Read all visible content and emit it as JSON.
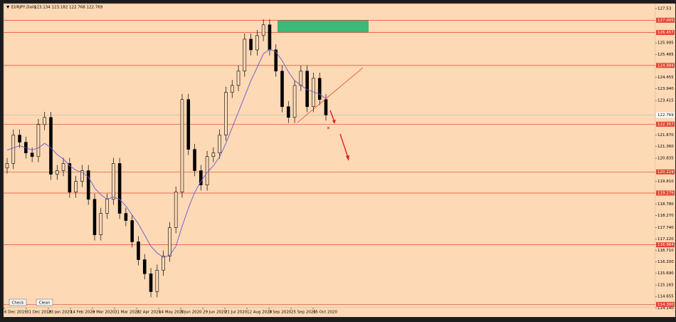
{
  "chart_data": {
    "type": "candlestick",
    "symbol": "EURJPY,Daily",
    "header_prices": "123.134 123.182 122.768 122.769",
    "ylim": [
      114.15,
      127.75
    ],
    "yticks": [
      127.53,
      125.995,
      125.465,
      124.455,
      {
        "value": 123.94,
        "label": "123.940"
      },
      123.415,
      {
        "value": 121.87,
        "label": "121.870"
      },
      {
        "value": 121.36,
        "label": "121.360"
      },
      120.835,
      {
        "value": 119.81,
        "label": "119.810"
      },
      {
        "value": 118.78,
        "label": "118.780"
      },
      {
        "value": 118.27,
        "label": "118.270"
      },
      {
        "value": 117.74,
        "label": "117.740"
      },
      {
        "value": 117.22,
        "label": "117.220"
      },
      {
        "value": 116.71,
        "label": "116.710"
      },
      {
        "value": 116.2,
        "label": "116.200"
      },
      {
        "value": 115.69,
        "label": "115.690"
      },
      115.165,
      114.655,
      {
        "value": 114.14,
        "label": "114.140"
      }
    ],
    "levels": [
      127.005,
      126.457,
      124.984,
      122.357,
      120.224,
      119.279,
      116.964,
      {
        "value": 114.3,
        "label": "114.300"
      }
    ],
    "current_price": 122.769,
    "zone": [
      127.005,
      126.457
    ],
    "zone_color": "#3cb878",
    "level_color": "#e0442f",
    "x_labels": [
      "6 Dec 2019",
      "31 Dec 2019",
      "23 Jan 2020",
      "14 Feb 2020",
      "9 Mar 2020",
      "31 Mar 2020",
      "22 Apr 2020",
      "14 May 2020",
      "5 Jun 2020",
      "29 Jun 2020",
      "21 Jul 2020",
      "12 Aug 2020",
      "3 Sep 2020",
      "25 Sep 2020",
      "15 Oct 2020"
    ],
    "buttons": [
      "Check",
      "Clean"
    ],
    "candles": [
      [
        120.4,
        120.85,
        120.15,
        120.6
      ],
      [
        120.6,
        122.12,
        120.35,
        121.87
      ],
      [
        121.87,
        122.12,
        121.3,
        121.55
      ],
      [
        121.55,
        121.8,
        120.82,
        121.07
      ],
      [
        121.07,
        121.32,
        120.66,
        120.91
      ],
      [
        120.91,
        122.59,
        120.66,
        122.34
      ],
      [
        122.34,
        122.91,
        122.09,
        122.66
      ],
      [
        122.66,
        122.91,
        119.87,
        120.12
      ],
      [
        120.12,
        120.53,
        119.87,
        120.28
      ],
      [
        120.28,
        120.85,
        120.03,
        120.6
      ],
      [
        120.6,
        120.85,
        119.07,
        119.32
      ],
      [
        119.32,
        120.05,
        119.07,
        119.8
      ],
      [
        119.8,
        120.53,
        119.55,
        120.28
      ],
      [
        120.28,
        120.53,
        118.75,
        119.0
      ],
      [
        119.0,
        119.25,
        117.16,
        117.41
      ],
      [
        117.41,
        118.62,
        117.16,
        118.37
      ],
      [
        118.37,
        119.25,
        118.12,
        119.0
      ],
      [
        119.0,
        120.85,
        118.75,
        120.6
      ],
      [
        120.6,
        120.85,
        118.12,
        118.37
      ],
      [
        118.37,
        118.62,
        117.8,
        118.05
      ],
      [
        118.05,
        118.3,
        116.85,
        117.1
      ],
      [
        117.1,
        117.35,
        116.05,
        116.3
      ],
      [
        116.3,
        116.55,
        115.42,
        115.67
      ],
      [
        115.67,
        115.92,
        114.62,
        114.87
      ],
      [
        114.87,
        116.08,
        114.62,
        115.83
      ],
      [
        115.83,
        116.71,
        115.58,
        116.46
      ],
      [
        116.46,
        117.98,
        116.21,
        117.73
      ],
      [
        117.73,
        119.57,
        117.48,
        119.32
      ],
      [
        119.32,
        123.71,
        119.07,
        123.46
      ],
      [
        123.46,
        123.71,
        120.98,
        121.23
      ],
      [
        121.23,
        121.48,
        120.03,
        120.28
      ],
      [
        120.28,
        120.53,
        119.39,
        119.64
      ],
      [
        119.64,
        121.16,
        119.39,
        120.91
      ],
      [
        120.91,
        121.32,
        120.66,
        121.07
      ],
      [
        121.07,
        122.12,
        120.82,
        121.87
      ],
      [
        121.87,
        124.03,
        121.62,
        123.78
      ],
      [
        123.78,
        124.34,
        123.53,
        124.09
      ],
      [
        124.09,
        124.98,
        123.84,
        124.73
      ],
      [
        124.73,
        126.41,
        124.48,
        126.16
      ],
      [
        126.16,
        126.41,
        125.43,
        125.68
      ],
      [
        125.68,
        126.57,
        125.43,
        126.32
      ],
      [
        126.32,
        127.05,
        126.07,
        126.8
      ],
      [
        126.8,
        127.05,
        125.43,
        125.68
      ],
      [
        125.68,
        125.93,
        124.48,
        124.73
      ],
      [
        124.73,
        124.98,
        122.89,
        123.14
      ],
      [
        123.14,
        123.39,
        122.41,
        122.66
      ],
      [
        122.66,
        124.34,
        122.41,
        124.09
      ],
      [
        124.09,
        124.98,
        123.84,
        124.73
      ],
      [
        124.73,
        124.98,
        122.89,
        123.14
      ],
      [
        123.14,
        124.66,
        122.89,
        124.41
      ],
      [
        124.41,
        124.66,
        123.21,
        123.46
      ],
      [
        123.46,
        123.71,
        122.52,
        122.77
      ]
    ],
    "ma": [
      121.2,
      121.3,
      121.4,
      121.3,
      121.2,
      121.3,
      121.5,
      121.3,
      121.0,
      120.8,
      120.5,
      120.3,
      120.2,
      120.0,
      119.5,
      119.2,
      119.0,
      119.1,
      119.0,
      118.7,
      118.3,
      117.9,
      117.4,
      116.9,
      116.6,
      116.4,
      116.5,
      116.9,
      117.8,
      118.6,
      119.3,
      119.8,
      120.2,
      120.5,
      120.9,
      121.5,
      122.2,
      122.9,
      123.6,
      124.3,
      124.9,
      125.5,
      125.7,
      125.6,
      125.2,
      124.7,
      124.3,
      124.1,
      123.9,
      123.8,
      123.7,
      123.5
    ],
    "ma_color": "#6a5acd"
  }
}
